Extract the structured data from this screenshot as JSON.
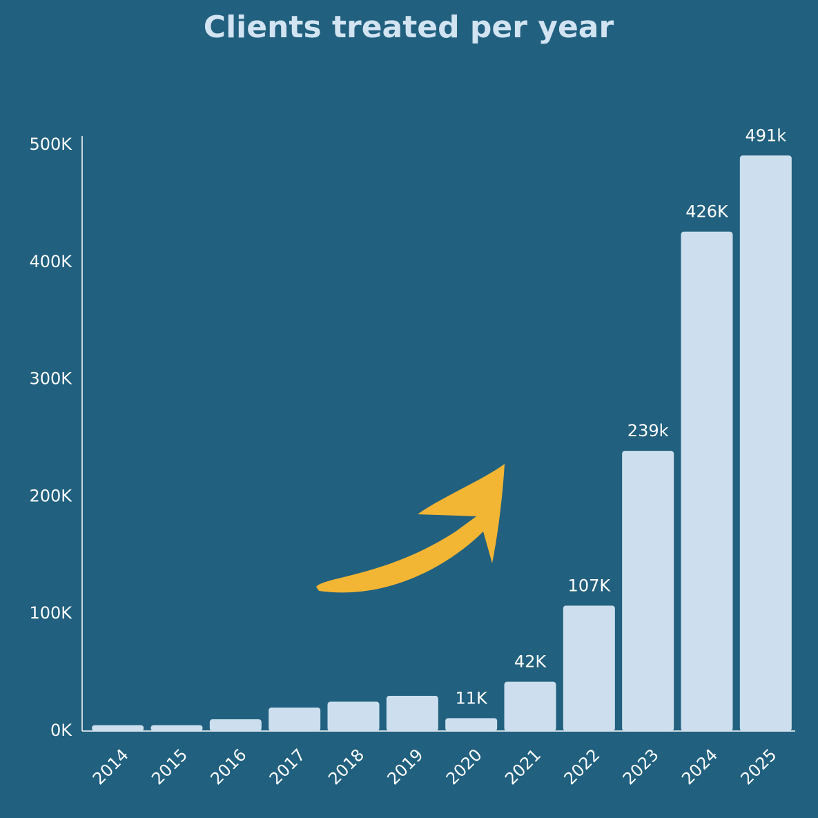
{
  "chart_data": {
    "type": "bar",
    "title": "Clients treated per year",
    "categories": [
      "2014",
      "2015",
      "2016",
      "2017",
      "2018",
      "2019",
      "2020",
      "2021",
      "2022",
      "2023",
      "2024",
      "2025"
    ],
    "values": [
      5000,
      5000,
      10000,
      20000,
      25000,
      30000,
      11000,
      42000,
      107000,
      239000,
      426000,
      491000
    ],
    "value_labels": [
      null,
      null,
      null,
      null,
      null,
      null,
      "11K",
      "42K",
      "107K",
      "239k",
      "426K",
      "491k"
    ],
    "color": "#cddfee",
    "ylim": [
      0,
      500000
    ],
    "yticks": [
      {
        "value": 0,
        "label": "0K"
      },
      {
        "value": 100000,
        "label": "100K"
      },
      {
        "value": 200000,
        "label": "200K"
      },
      {
        "value": 300000,
        "label": "300K"
      },
      {
        "value": 400000,
        "label": "400K"
      },
      {
        "value": 500000,
        "label": "500K"
      }
    ],
    "grid": false
  }
}
